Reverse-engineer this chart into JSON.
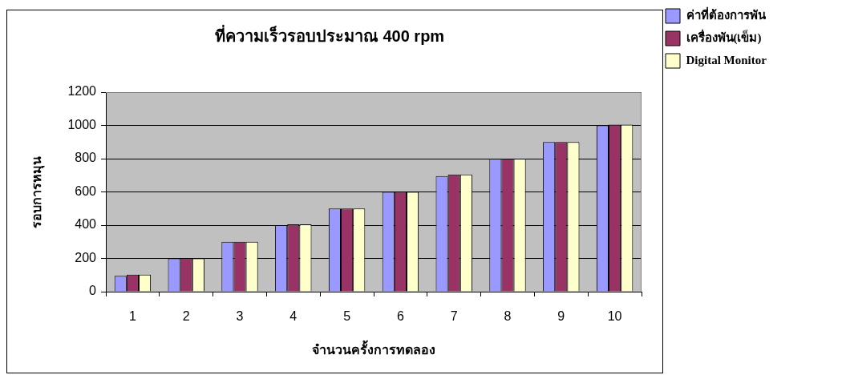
{
  "chart_data": {
    "type": "bar",
    "title": "ที่ความเร็วรอบประมาณ 400 rpm",
    "xlabel": "จำนวนครั้งการทดลอง",
    "ylabel": "รอบการหมุน",
    "categories": [
      "1",
      "2",
      "3",
      "4",
      "5",
      "6",
      "7",
      "8",
      "9",
      "10"
    ],
    "series": [
      {
        "name": "ค่าที่ต้องการพัน",
        "color": "#9999ff",
        "values": [
          95,
          200,
          300,
          400,
          500,
          600,
          695,
          800,
          900,
          1000
        ]
      },
      {
        "name": "เครื่องพัน(เข็ม)",
        "color": "#993366",
        "values": [
          103,
          200,
          300,
          405,
          500,
          600,
          705,
          800,
          900,
          1005
        ]
      },
      {
        "name": "Digital Monitor",
        "color": "#ffffcc",
        "values": [
          103,
          200,
          300,
          405,
          500,
          600,
          705,
          800,
          900,
          1005
        ]
      }
    ],
    "ylim": [
      0,
      1200
    ],
    "yticks": [
      0,
      200,
      400,
      600,
      800,
      1000,
      1200
    ],
    "grid": "y",
    "legend": "top right"
  }
}
